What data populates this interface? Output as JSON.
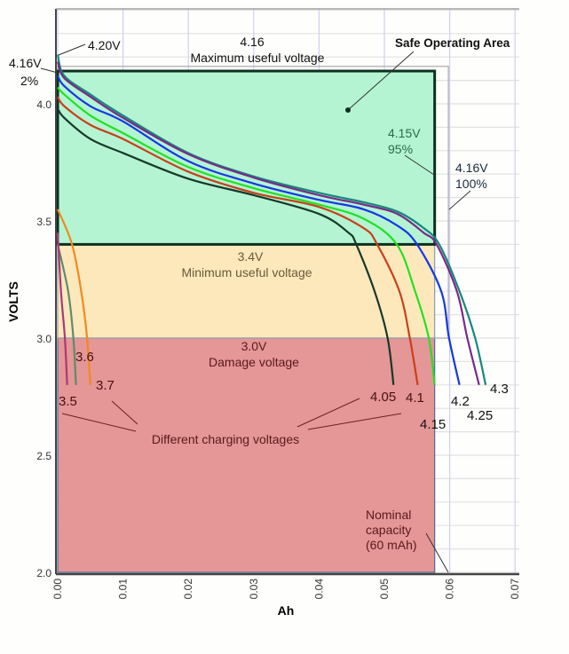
{
  "chart_data": {
    "type": "line",
    "title": "",
    "xlabel": "Ah",
    "ylabel": "VOLTS",
    "xlim": [
      0,
      0.0705
    ],
    "ylim": [
      2.0,
      4.4
    ],
    "grid": true,
    "x_ticks": [
      "0.00",
      "0.01",
      "0.02",
      "0.03",
      "0.04",
      "0.05",
      "0.06",
      "0.07"
    ],
    "y_ticks": [
      "2.0",
      "2.5",
      "3.0",
      "3.5",
      "4.0"
    ],
    "regions": [
      {
        "name": "safe-operating-area",
        "x": [
          0,
          0.0577
        ],
        "y": [
          3.4,
          4.14
        ],
        "color": "#b4f4d2",
        "border": "#0c3020"
      },
      {
        "name": "minimum-useful-zone",
        "x": [
          0,
          0.0577
        ],
        "y": [
          3.0,
          3.4
        ],
        "color": "#fde8bc",
        "border": "#8a9aa8"
      },
      {
        "name": "damage-zone",
        "x": [
          0,
          0.0577
        ],
        "y": [
          2.0,
          3.0
        ],
        "color": "#e59696",
        "border": "#4a6a9a"
      },
      {
        "name": "full-capacity-box",
        "x": [
          0,
          0.0598
        ],
        "y": [
          3.0,
          4.16
        ],
        "color": "none",
        "border": "#a8a8a8"
      }
    ],
    "series": [
      {
        "name": "4.3",
        "color": "#16887c",
        "points": [
          [
            0,
            4.21
          ],
          [
            0.001,
            4.12
          ],
          [
            0.005,
            4.04
          ],
          [
            0.01,
            3.95
          ],
          [
            0.02,
            3.79
          ],
          [
            0.03,
            3.69
          ],
          [
            0.04,
            3.62
          ],
          [
            0.0468,
            3.58
          ],
          [
            0.052,
            3.54
          ],
          [
            0.056,
            3.47
          ],
          [
            0.0584,
            3.4
          ],
          [
            0.0615,
            3.2
          ],
          [
            0.0639,
            3.0
          ],
          [
            0.0655,
            2.8
          ]
        ]
      },
      {
        "name": "4.25",
        "color": "#7a2a8a",
        "points": [
          [
            0,
            4.18
          ],
          [
            0.001,
            4.11
          ],
          [
            0.005,
            4.03
          ],
          [
            0.01,
            3.94
          ],
          [
            0.02,
            3.785
          ],
          [
            0.03,
            3.685
          ],
          [
            0.04,
            3.61
          ],
          [
            0.0468,
            3.57
          ],
          [
            0.052,
            3.53
          ],
          [
            0.056,
            3.45
          ],
          [
            0.058,
            3.4
          ],
          [
            0.0611,
            3.2
          ],
          [
            0.0627,
            3.0
          ],
          [
            0.0645,
            2.8
          ]
        ]
      },
      {
        "name": "4.2",
        "color": "#1438e6",
        "points": [
          [
            0,
            4.12
          ],
          [
            0.001,
            4.076
          ],
          [
            0.005,
            3.99
          ],
          [
            0.01,
            3.925
          ],
          [
            0.02,
            3.755
          ],
          [
            0.03,
            3.66
          ],
          [
            0.04,
            3.59
          ],
          [
            0.0468,
            3.55
          ],
          [
            0.052,
            3.48
          ],
          [
            0.055,
            3.4
          ],
          [
            0.0587,
            3.2
          ],
          [
            0.0599,
            3.0
          ],
          [
            0.0615,
            2.8
          ]
        ]
      },
      {
        "name": "4.15",
        "color": "#22e022",
        "points": [
          [
            0,
            4.07
          ],
          [
            0.001,
            4.04
          ],
          [
            0.005,
            3.95
          ],
          [
            0.01,
            3.875
          ],
          [
            0.02,
            3.73
          ],
          [
            0.03,
            3.64
          ],
          [
            0.04,
            3.57
          ],
          [
            0.0468,
            3.51
          ],
          [
            0.0519,
            3.4
          ],
          [
            0.0547,
            3.2
          ],
          [
            0.0568,
            3.0
          ],
          [
            0.0577,
            2.8
          ]
        ]
      },
      {
        "name": "4.1",
        "color": "#c8401c",
        "points": [
          [
            0,
            4.03
          ],
          [
            0.001,
            3.99
          ],
          [
            0.005,
            3.91
          ],
          [
            0.01,
            3.85
          ],
          [
            0.02,
            3.71
          ],
          [
            0.03,
            3.62
          ],
          [
            0.04,
            3.56
          ],
          [
            0.0468,
            3.47
          ],
          [
            0.0489,
            3.4
          ],
          [
            0.0523,
            3.2
          ],
          [
            0.0539,
            3.0
          ],
          [
            0.0551,
            2.8
          ]
        ]
      },
      {
        "name": "4.05",
        "color": "#18382a",
        "points": [
          [
            0,
            3.98
          ],
          [
            0.001,
            3.94
          ],
          [
            0.005,
            3.85
          ],
          [
            0.01,
            3.79
          ],
          [
            0.02,
            3.68
          ],
          [
            0.03,
            3.61
          ],
          [
            0.04,
            3.53
          ],
          [
            0.0445,
            3.45
          ],
          [
            0.0457,
            3.4
          ],
          [
            0.0485,
            3.2
          ],
          [
            0.0505,
            3.0
          ],
          [
            0.0514,
            2.8
          ]
        ]
      },
      {
        "name": "3.7",
        "color": "#f08a20",
        "points": [
          [
            0,
            3.55
          ],
          [
            0.0022,
            3.4
          ],
          [
            0.0036,
            3.2
          ],
          [
            0.0045,
            3.0
          ],
          [
            0.005,
            2.8
          ]
        ]
      },
      {
        "name": "3.6",
        "color": "#5e8c6c",
        "points": [
          [
            0,
            3.4
          ],
          [
            0.0016,
            3.2
          ],
          [
            0.0024,
            3.0
          ],
          [
            0.0028,
            2.8
          ]
        ]
      },
      {
        "name": "3.5",
        "color": "#a83a78",
        "points": [
          [
            0,
            3.45
          ],
          [
            0.0005,
            3.2
          ],
          [
            0.0011,
            3.0
          ],
          [
            0.00145,
            2.8
          ]
        ]
      }
    ],
    "annotations": {
      "start_voltage": "4.20V",
      "start_cutoff_v": "4.16V",
      "start_cutoff_pct": "2%",
      "max_value": "4.16",
      "max_label": "Maximum useful voltage",
      "safe_area": "Safe Operating Area",
      "cutoff95_v": "4.15V",
      "cutoff95_pct": "95%",
      "cutoff100_v": "4.16V",
      "cutoff100_pct": "100%",
      "min_value": "3.4V",
      "min_label": "Minimum useful voltage",
      "damage_value": "3.0V",
      "damage_label": "Damage voltage",
      "charging_label": "Different charging voltages",
      "nominal_1": "Nominal",
      "nominal_2": "capacity",
      "nominal_3": "(60 mAh)"
    }
  }
}
